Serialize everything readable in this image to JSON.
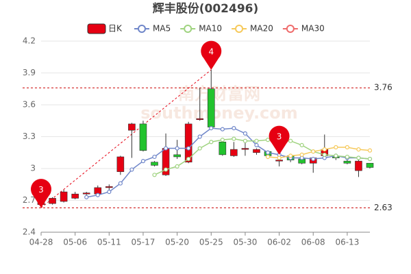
{
  "chart_data": {
    "type": "candlestick",
    "title": "辉丰股份(002496)",
    "watermark": [
      "南方财富网",
      "southmoney.com"
    ],
    "categories": [
      "04-28",
      null,
      null,
      "05-06",
      null,
      null,
      "05-11",
      null,
      null,
      "05-17",
      null,
      null,
      "05-20",
      null,
      null,
      "05-25",
      null,
      null,
      "05-30",
      null,
      null,
      "06-02",
      null,
      null,
      "06-08",
      null,
      null,
      "06-13",
      null,
      null
    ],
    "candles": {
      "name": "日K",
      "up_color": "#e60012",
      "down_color": "#22c32e",
      "open": [
        2.66,
        2.67,
        2.69,
        2.72,
        2.76,
        2.76,
        2.82,
        2.97,
        3.36,
        3.42,
        3.06,
        2.94,
        3.13,
        3.06,
        3.46,
        3.75,
        3.25,
        3.12,
        3.18,
        3.15,
        3.16,
        3.07,
        3.12,
        3.09,
        3.05,
        3.12,
        3.11,
        3.07,
        2.98,
        3.05
      ],
      "close": [
        2.68,
        2.72,
        2.78,
        2.76,
        2.77,
        2.82,
        2.83,
        3.11,
        3.42,
        3.17,
        3.03,
        3.19,
        3.11,
        3.42,
        3.47,
        3.39,
        3.13,
        3.18,
        3.19,
        3.18,
        3.12,
        3.08,
        3.08,
        3.05,
        3.1,
        3.18,
        3.1,
        3.05,
        3.07,
        3.01
      ],
      "high": [
        2.7,
        2.73,
        2.8,
        2.78,
        2.78,
        2.84,
        2.85,
        3.12,
        3.43,
        3.45,
        3.07,
        3.33,
        3.27,
        3.44,
        3.76,
        3.93,
        3.27,
        3.25,
        3.25,
        3.19,
        3.17,
        3.13,
        3.13,
        3.1,
        3.1,
        3.32,
        3.13,
        3.11,
        3.09,
        3.05
      ],
      "low": [
        2.64,
        2.66,
        2.68,
        2.71,
        2.75,
        2.74,
        2.8,
        2.94,
        3.1,
        3.16,
        3.02,
        2.93,
        3.09,
        3.05,
        3.45,
        3.37,
        3.12,
        3.11,
        3.12,
        3.13,
        3.09,
        3.02,
        3.06,
        3.04,
        2.96,
        3.1,
        3.08,
        3.04,
        2.92,
        3.0
      ]
    },
    "series": [
      {
        "name": "MA5",
        "color": "#6f86c9",
        "values": [
          null,
          null,
          null,
          null,
          2.73,
          2.75,
          2.78,
          2.86,
          2.99,
          3.07,
          3.11,
          3.19,
          3.19,
          3.19,
          3.3,
          3.38,
          3.37,
          3.38,
          3.33,
          3.22,
          3.15,
          3.13,
          3.1,
          3.1,
          3.09,
          3.1,
          3.12,
          3.1,
          3.1,
          3.09
        ]
      },
      {
        "name": "MA10",
        "color": "#9fd37f",
        "values": [
          null,
          null,
          null,
          null,
          null,
          null,
          null,
          null,
          null,
          null,
          2.94,
          2.99,
          3.02,
          3.09,
          3.19,
          3.25,
          3.27,
          3.28,
          3.26,
          3.26,
          3.27,
          3.26,
          3.26,
          3.22,
          3.16,
          3.13,
          3.12,
          3.11,
          3.1,
          3.09
        ]
      },
      {
        "name": "MA20",
        "color": "#f6c95a",
        "values": [
          null,
          null,
          null,
          null,
          null,
          null,
          null,
          null,
          null,
          null,
          null,
          null,
          null,
          null,
          null,
          null,
          null,
          null,
          null,
          null,
          3.11,
          3.1,
          3.12,
          3.13,
          3.16,
          3.18,
          3.2,
          3.2,
          3.18,
          3.17
        ]
      },
      {
        "name": "MA30",
        "color": "#ef6b6b",
        "values": [
          null,
          null,
          null,
          null,
          null,
          null,
          null,
          null,
          null,
          null,
          null,
          null,
          null,
          null,
          null,
          null,
          null,
          null,
          null,
          null,
          null,
          null,
          null,
          null,
          null,
          null,
          null,
          null,
          null,
          null
        ]
      }
    ],
    "pins": [
      {
        "label": "3",
        "index": 0,
        "value": 2.63
      },
      {
        "label": "4",
        "index": 15,
        "value": 3.93
      },
      {
        "label": "3",
        "index": 21,
        "value": 3.13
      }
    ],
    "ref_lines": [
      {
        "value": 3.76,
        "label": "3.76"
      },
      {
        "value": 2.63,
        "label": "2.63"
      }
    ],
    "ylim": [
      2.4,
      4.2
    ],
    "yticks": [
      2.4,
      2.7,
      3,
      3.3,
      3.6,
      3.9,
      4.2
    ],
    "grid": true
  }
}
